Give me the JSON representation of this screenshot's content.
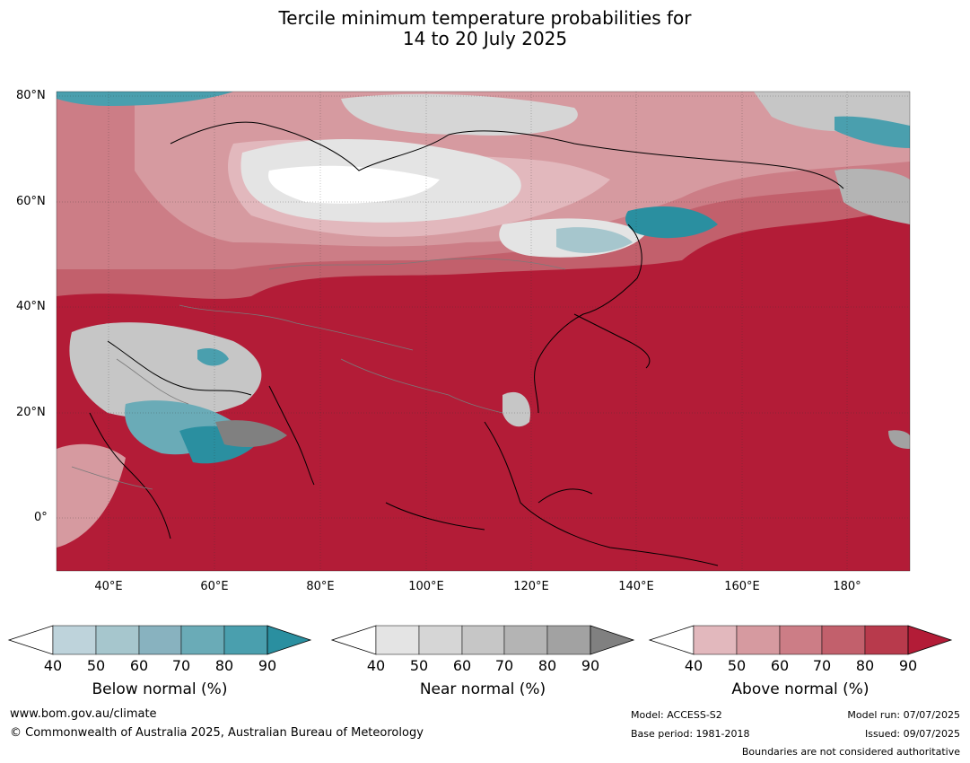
{
  "title_line1": "Tercile minimum temperature probabilities for",
  "title_line2": "14 to 20 July 2025",
  "lat_labels": [
    "80°N",
    "60°N",
    "40°N",
    "20°N",
    "0°"
  ],
  "lon_labels": [
    "40°E",
    "60°E",
    "80°E",
    "100°E",
    "120°E",
    "140°E",
    "160°E",
    "180°"
  ],
  "colorbars": [
    {
      "title": "Below normal (%)",
      "ticks": [
        "40",
        "50",
        "60",
        "70",
        "80",
        "90"
      ],
      "colors": [
        "#ffffff",
        "#bed3db",
        "#a6c6cd",
        "#88b2bf",
        "#6aabb7",
        "#4a9fae",
        "#2a8fa0"
      ]
    },
    {
      "title": "Near normal (%)",
      "ticks": [
        "40",
        "50",
        "60",
        "70",
        "80",
        "90"
      ],
      "colors": [
        "#ffffff",
        "#e4e4e4",
        "#d6d6d6",
        "#c6c6c6",
        "#b4b4b4",
        "#a2a2a2",
        "#808080"
      ]
    },
    {
      "title": "Above normal (%)",
      "ticks": [
        "40",
        "50",
        "60",
        "70",
        "80",
        "90"
      ],
      "colors": [
        "#ffffff",
        "#e2b8bd",
        "#d69aa0",
        "#cc7d86",
        "#c2606c",
        "#b83a4c",
        "#b31c37"
      ]
    }
  ],
  "footer": {
    "website": "www.bom.gov.au/climate",
    "copyright": "© Commonwealth of Australia 2025, Australian Bureau of Meteorology",
    "model": "Model: ACCESS-S2",
    "base_period": "Base period: 1981-2018",
    "model_run": "Model run: 07/07/2025",
    "issued": "Issued: 09/07/2025",
    "boundaries": "Boundaries are not considered authoritative"
  }
}
